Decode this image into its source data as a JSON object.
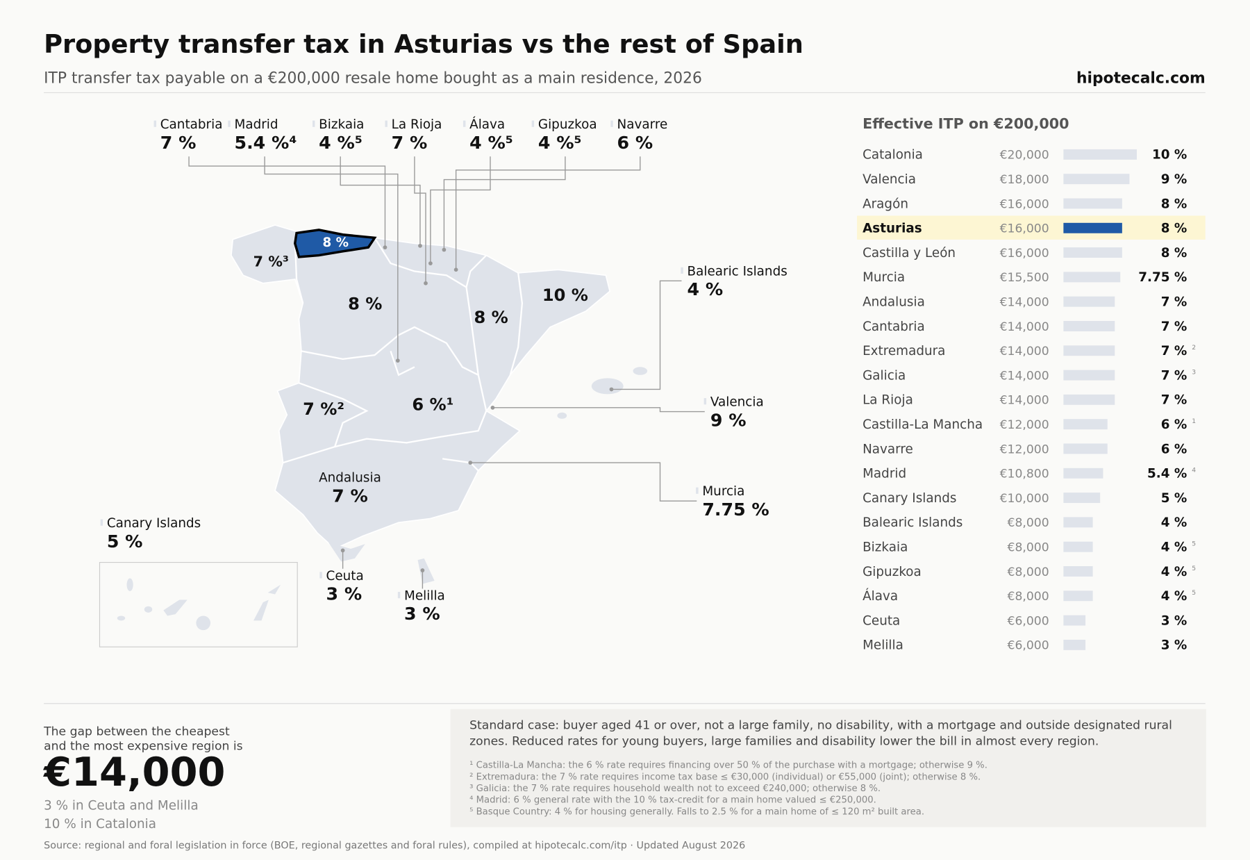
{
  "header": {
    "title": "Property transfer tax in Asturias vs the rest of Spain",
    "subtitle": "ITP transfer tax payable on a €200,000 resale home bought as a main residence, 2026",
    "brand": "hipotecalc.com"
  },
  "map": {
    "asturias_label": "8 %",
    "region_labels": [
      "7 %³",
      "8 %",
      "10 %",
      "8 %",
      "7 %²",
      "6 %¹"
    ],
    "callouts": [
      {
        "name": "Cantabria",
        "value": "7 %"
      },
      {
        "name": "Madrid",
        "value": "5.4 %⁴"
      },
      {
        "name": "Bizkaia",
        "value": "4 %⁵"
      },
      {
        "name": "La Rioja",
        "value": "7 %"
      },
      {
        "name": "Álava",
        "value": "4 %⁵"
      },
      {
        "name": "Gipuzkoa",
        "value": "4 %⁵"
      },
      {
        "name": "Navarre",
        "value": "6 %"
      },
      {
        "name": "Balearic Islands",
        "value": "4 %"
      },
      {
        "name": "Valencia",
        "value": "9 %"
      },
      {
        "name": "Murcia",
        "value": "7.75 %"
      },
      {
        "name": "Andalusia",
        "value": "7 %"
      },
      {
        "name": "Canary Islands",
        "value": "5 %"
      },
      {
        "name": "Ceuta",
        "value": "3 %"
      },
      {
        "name": "Melilla",
        "value": "3 %"
      }
    ]
  },
  "chart_data": {
    "type": "bar",
    "orientation": "horizontal",
    "title": "Effective ITP on €200,000",
    "categories": [
      "Catalonia",
      "Valencia",
      "Aragón",
      "Asturias",
      "Castilla y León",
      "Murcia",
      "Andalusia",
      "Cantabria",
      "Extremadura",
      "Galicia",
      "La Rioja",
      "Castilla-La Mancha",
      "Navarre",
      "Madrid",
      "Canary Islands",
      "Balearic Islands",
      "Bizkaia",
      "Gipuzkoa",
      "Álava",
      "Ceuta",
      "Melilla"
    ],
    "amounts": [
      "€20,000",
      "€18,000",
      "€16,000",
      "€16,000",
      "€16,000",
      "€15,500",
      "€14,000",
      "€14,000",
      "€14,000",
      "€14,000",
      "€14,000",
      "€12,000",
      "€12,000",
      "€10,800",
      "€10,000",
      "€8,000",
      "€8,000",
      "€8,000",
      "€8,000",
      "€6,000",
      "€6,000"
    ],
    "values": [
      10,
      9,
      8,
      8,
      8,
      7.75,
      7,
      7,
      7,
      7,
      7,
      6,
      6,
      5.4,
      5,
      4,
      4,
      4,
      4,
      3,
      3
    ],
    "value_labels": [
      "10 %",
      "9 %",
      "8 %",
      "8 %",
      "8 %",
      "7.75 %",
      "7 %",
      "7 %",
      "7 %",
      "7 %",
      "7 %",
      "6 %",
      "6 %",
      "5.4 %",
      "5 %",
      "4 %",
      "4 %",
      "4 %",
      "4 %",
      "3 %",
      "3 %"
    ],
    "notes": [
      null,
      null,
      null,
      null,
      null,
      null,
      null,
      null,
      "2",
      "3",
      null,
      "1",
      null,
      "4",
      null,
      null,
      "5",
      "5",
      "5",
      null,
      null
    ],
    "color": "#dfe3ea",
    "highlight": "Asturias",
    "highlight_color": "#1f5aa6",
    "highlight_background": "#fdf6d3"
  },
  "footer": {
    "gap_intro": [
      "The gap between the cheapest",
      "and the most expensive region is"
    ],
    "gap_value": "€14,000",
    "gap_details": [
      "3 % in Ceuta and Melilla",
      "10 % in Catalonia"
    ],
    "standard_case": [
      "Standard case: buyer aged 41 or over, not a large family, no disability, with a mortgage and outside designated rural",
      "zones. Reduced rates for young buyers, large families and disability lower the bill in almost every region."
    ],
    "footnotes": [
      "¹ Castilla-La Mancha: the 6 % rate requires financing over 50 % of the purchase with a mortgage; otherwise 9 %.",
      "² Extremadura: the 7 % rate requires income tax base ≤ €30,000 (individual) or €55,000 (joint); otherwise 8 %.",
      "³ Galicia: the 7 % rate requires household wealth not to exceed €240,000; otherwise 8 %.",
      "⁴ Madrid: 6 % general rate with the 10 % tax-credit for a main home valued ≤ €250,000.",
      "⁵ Basque Country: 4 % for housing generally. Falls to 2.5 % for a main home of ≤ 120 m² built area."
    ],
    "source": "Source: regional and foral legislation in force (BOE, regional gazettes and foral rules), compiled at hipotecalc.com/itp · Updated August 2026"
  }
}
